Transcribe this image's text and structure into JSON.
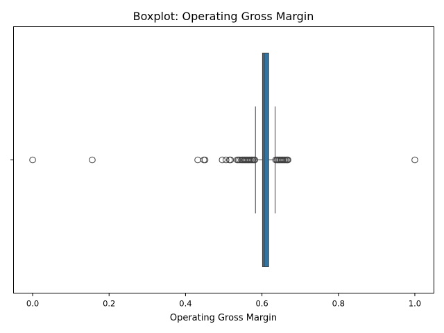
{
  "chart_data": {
    "type": "boxplot",
    "orientation": "horizontal",
    "title": "Boxplot:  Operating Gross Margin",
    "xlabel": "Operating Gross Margin",
    "ylabel": "",
    "xlim": [
      -0.05,
      1.05
    ],
    "xticks": [
      0.0,
      0.2,
      0.4,
      0.6,
      0.8,
      1.0
    ],
    "xtick_labels": [
      "0.0",
      "0.2",
      "0.4",
      "0.6",
      "0.8",
      "1.0"
    ],
    "grid": false,
    "box_color": "#3274a1",
    "stats": {
      "whisker_low": 0.583,
      "q1": 0.6015,
      "median": 0.606,
      "q3": 0.6175,
      "whisker_high": 0.6345
    },
    "outliers": [
      0.0,
      0.156,
      0.432,
      0.448,
      0.451,
      0.496,
      0.506,
      0.515,
      0.518,
      0.535,
      0.538,
      0.542,
      0.546,
      0.549,
      0.552,
      0.555,
      0.558,
      0.561,
      0.564,
      0.567,
      0.57,
      0.573,
      0.576,
      0.579,
      0.581,
      0.636,
      0.639,
      0.642,
      0.645,
      0.648,
      0.651,
      0.654,
      0.657,
      0.66,
      0.663,
      0.666,
      0.668,
      1.0
    ]
  }
}
